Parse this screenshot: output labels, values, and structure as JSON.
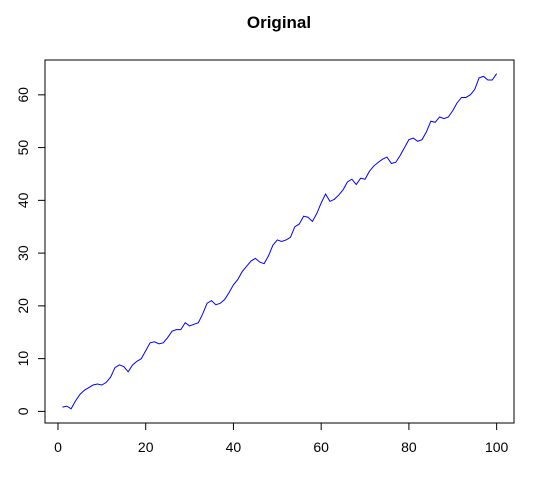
{
  "chart_data": {
    "type": "line",
    "title": "Original",
    "x": [
      1,
      2,
      3,
      4,
      5,
      6,
      7,
      8,
      9,
      10,
      11,
      12,
      13,
      14,
      15,
      16,
      17,
      18,
      19,
      20,
      21,
      22,
      23,
      24,
      25,
      26,
      27,
      28,
      29,
      30,
      31,
      32,
      33,
      34,
      35,
      36,
      37,
      38,
      39,
      40,
      41,
      42,
      43,
      44,
      45,
      46,
      47,
      48,
      49,
      50,
      51,
      52,
      53,
      54,
      55,
      56,
      57,
      58,
      59,
      60,
      61,
      62,
      63,
      64,
      65,
      66,
      67,
      68,
      69,
      70,
      71,
      72,
      73,
      74,
      75,
      76,
      77,
      78,
      79,
      80,
      81,
      82,
      83,
      84,
      85,
      86,
      87,
      88,
      89,
      90,
      91,
      92,
      93,
      94,
      95,
      96,
      97,
      98,
      99,
      100
    ],
    "series": [
      {
        "color": "#0000ff",
        "values": [
          0.8,
          1.0,
          0.5,
          2.0,
          3.2,
          4.0,
          4.5,
          5.0,
          5.2,
          5.0,
          5.5,
          6.5,
          8.3,
          8.8,
          8.5,
          7.5,
          8.8,
          9.5,
          10.0,
          11.5,
          13.0,
          13.2,
          12.8,
          13.0,
          14.0,
          15.2,
          15.5,
          15.5,
          16.8,
          16.2,
          16.5,
          16.8,
          18.5,
          20.5,
          21.0,
          20.2,
          20.5,
          21.2,
          22.5,
          24.0,
          25.0,
          26.5,
          27.5,
          28.5,
          29.0,
          28.3,
          28.0,
          29.5,
          31.5,
          32.5,
          32.2,
          32.5,
          33.0,
          35.0,
          35.5,
          37.0,
          36.8,
          36.0,
          37.5,
          39.5,
          41.2,
          39.8,
          40.2,
          41.0,
          42.0,
          43.5,
          44.0,
          43.0,
          44.2,
          44.0,
          45.5,
          46.5,
          47.2,
          47.8,
          48.2,
          47.0,
          47.2,
          48.5,
          50.0,
          51.5,
          51.8,
          51.2,
          51.5,
          53.0,
          55.0,
          54.8,
          55.8,
          55.5,
          55.8,
          57.0,
          58.5,
          59.5,
          59.5,
          60.0,
          61.0,
          63.2,
          63.5,
          62.8,
          62.8,
          64.0
        ]
      }
    ],
    "xlim": [
      -2.96,
      103.96
    ],
    "xticks": [
      0,
      20,
      40,
      60,
      80,
      100
    ],
    "ylim": [
      -2.2,
      66.6
    ],
    "yticks": [
      0,
      10,
      20,
      30,
      40,
      50,
      60
    ]
  }
}
